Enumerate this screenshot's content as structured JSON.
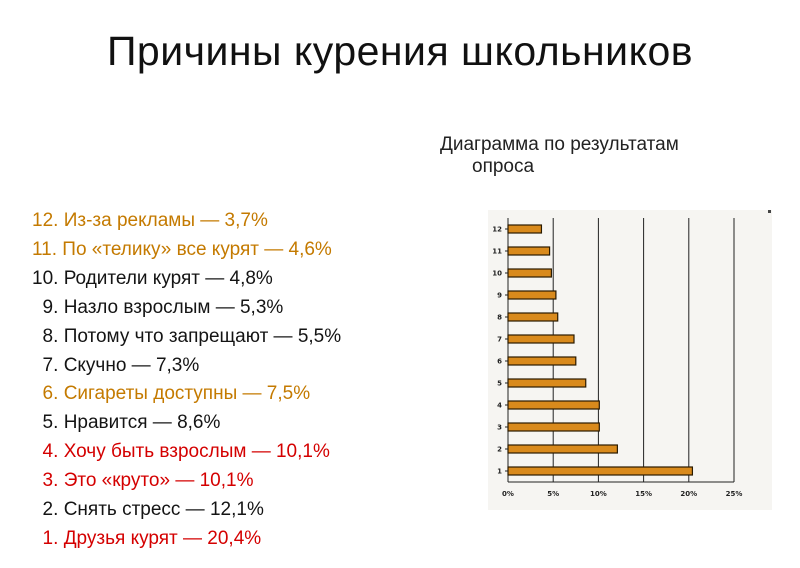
{
  "title": "Причины курения школьников",
  "subtitle": {
    "line1": "Диаграмма по результатам",
    "line2": "опроса"
  },
  "reasons": [
    {
      "num": "12.",
      "text": "Из-за рекламы — 3,7%",
      "color": "#c47a00"
    },
    {
      "num": "11.",
      "text": "По «телику» все курят — 4,6%",
      "color": "#c47a00"
    },
    {
      "num": "10.",
      "text": "Родители курят — 4,8%",
      "color": "#141414"
    },
    {
      "num": " 9.",
      "text": "Назло взрослым — 5,3%",
      "color": "#141414"
    },
    {
      "num": " 8.",
      "text": "Потому что запрещают — 5,5%",
      "color": "#141414"
    },
    {
      "num": " 7.",
      "text": "Скучно — 7,3%",
      "color": "#141414"
    },
    {
      "num": " 6.",
      "text": "Сигареты доступны — 7,5%",
      "color": "#c47a00"
    },
    {
      "num": " 5.",
      "text": "Нравится — 8,6%",
      "color": "#141414"
    },
    {
      "num": " 4.",
      "text": "Хочу быть взрослым — 10,1%",
      "color": "#d40000"
    },
    {
      "num": " 3.",
      "text": "Это «круто» — 10,1%",
      "color": "#d40000"
    },
    {
      "num": " 2.",
      "text": "Снять стресс — 12,1%",
      "color": "#141414"
    },
    {
      "num": " 1.",
      "text": "Друзья курят — 20,4%",
      "color": "#d40000"
    }
  ],
  "chart_data": {
    "type": "bar",
    "orientation": "horizontal",
    "categories": [
      "1",
      "2",
      "3",
      "4",
      "5",
      "6",
      "7",
      "8",
      "9",
      "10",
      "11",
      "12"
    ],
    "values": [
      20.4,
      12.1,
      10.1,
      10.1,
      8.6,
      7.5,
      7.3,
      5.5,
      5.3,
      4.8,
      4.6,
      3.7
    ],
    "xlim": [
      0,
      25
    ],
    "xticks": [
      "0%",
      "5%",
      "10%",
      "15%",
      "20%",
      "25%"
    ],
    "xtick_values": [
      0,
      5,
      10,
      15,
      20,
      25
    ],
    "grid": "vertical",
    "bar_color": "#d98a1c",
    "bar_edge_color": "#2a1a00"
  }
}
